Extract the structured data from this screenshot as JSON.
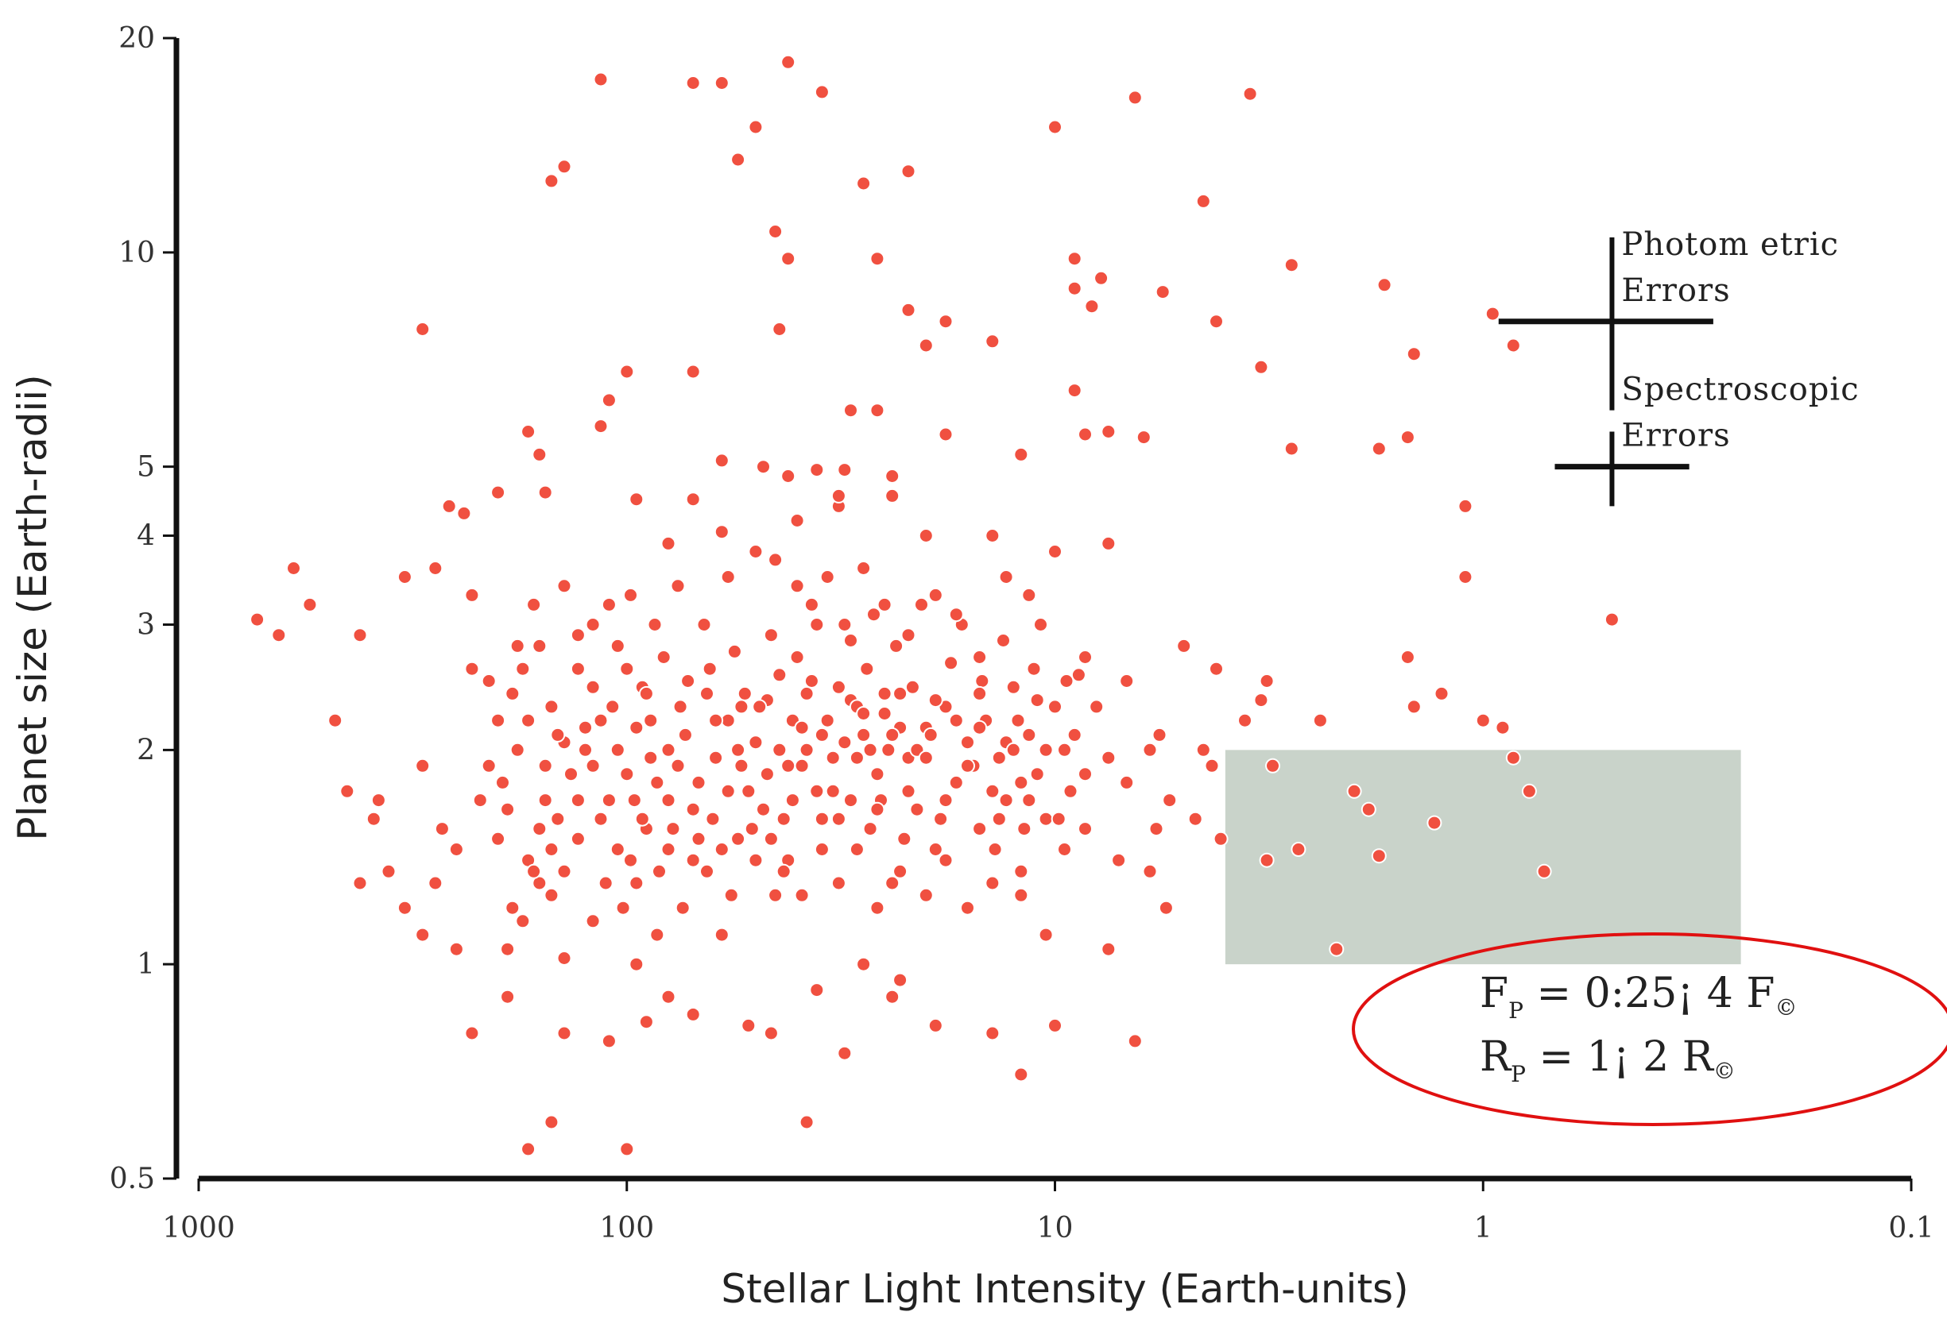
{
  "chart_data": {
    "type": "scatter",
    "xlabel": "Stellar Light Intensity (Earth-units)",
    "ylabel": "Planet size (Earth-radii)",
    "x_scale": "log",
    "y_scale": "log",
    "x_reversed": true,
    "xlim": [
      1000,
      0.1
    ],
    "ylim": [
      0.5,
      20
    ],
    "x_ticks": [
      1000,
      100,
      10,
      1,
      0.1
    ],
    "x_tick_labels": [
      "1000",
      "100",
      "10",
      "1",
      "0.1"
    ],
    "y_ticks": [
      0.5,
      1,
      2,
      3,
      4,
      5,
      10,
      20
    ],
    "y_tick_labels": [
      "0.5",
      "1",
      "2",
      "3",
      "4",
      "5",
      "10",
      "20"
    ],
    "grid": false,
    "point_color": "#f05040",
    "highlight_region": {
      "x": [
        4,
        0.25
      ],
      "y": [
        1,
        2
      ],
      "color": "#c9d3ca"
    },
    "error_bars": [
      {
        "label_lines": [
          "Photom etric",
          "Errors"
        ],
        "center": [
          0.5,
          8.0
        ],
        "x_range": [
          0.92,
          0.29
        ],
        "y_range": [
          6.0,
          10.5
        ]
      },
      {
        "label_lines": [
          "Spectroscopic",
          "Errors"
        ],
        "center": [
          0.5,
          5.0
        ],
        "x_range": [
          0.68,
          0.33
        ],
        "y_range": [
          4.4,
          5.6
        ]
      }
    ],
    "formula_lines": [
      {
        "main": "F",
        "sub": "P",
        "rest": " = 0:25¡ 4 F",
        "end": "©"
      },
      {
        "main": "R",
        "sub": "P",
        "rest": " = 1¡ 2 R",
        "end": "©"
      }
    ],
    "highlight_points": [
      [
        3.1,
        1.9
      ],
      [
        2.0,
        1.75
      ],
      [
        1.85,
        1.65
      ],
      [
        2.7,
        1.45
      ],
      [
        3.2,
        1.4
      ],
      [
        1.75,
        1.42
      ],
      [
        1.3,
        1.58
      ],
      [
        0.78,
        1.75
      ],
      [
        0.72,
        1.35
      ],
      [
        2.2,
        1.05
      ]
    ],
    "points": [
      [
        42,
        18.5
      ],
      [
        70,
        17.3
      ],
      [
        115,
        17.5
      ],
      [
        60,
        17.3
      ],
      [
        35,
        16.8
      ],
      [
        6.5,
        16.5
      ],
      [
        3.5,
        16.7
      ],
      [
        50,
        15
      ],
      [
        10,
        15
      ],
      [
        140,
        13.2
      ],
      [
        150,
        12.6
      ],
      [
        55,
        13.5
      ],
      [
        22,
        13
      ],
      [
        28,
        12.5
      ],
      [
        4.5,
        11.8
      ],
      [
        45,
        10.7
      ],
      [
        42,
        9.8
      ],
      [
        26,
        9.8
      ],
      [
        9,
        9.8
      ],
      [
        2.8,
        9.6
      ],
      [
        7.8,
        9.2
      ],
      [
        1.7,
        9.0
      ],
      [
        9,
        8.9
      ],
      [
        5.6,
        8.8
      ],
      [
        8.2,
        8.4
      ],
      [
        0.95,
        8.2
      ],
      [
        22,
        8.3
      ],
      [
        18,
        8.0
      ],
      [
        4.2,
        8.0
      ],
      [
        44,
        7.8
      ],
      [
        300,
        7.8
      ],
      [
        14,
        7.5
      ],
      [
        20,
        7.4
      ],
      [
        0.85,
        7.4
      ],
      [
        1.45,
        7.2
      ],
      [
        3.3,
        6.9
      ],
      [
        70,
        6.8
      ],
      [
        100,
        6.8
      ],
      [
        110,
        6.2
      ],
      [
        9,
        6.4
      ],
      [
        26,
        6.0
      ],
      [
        30,
        6.0
      ],
      [
        115,
        5.7
      ],
      [
        170,
        5.6
      ],
      [
        7.5,
        5.6
      ],
      [
        8.5,
        5.55
      ],
      [
        18,
        5.55
      ],
      [
        6.2,
        5.5
      ],
      [
        1.5,
        5.5
      ],
      [
        1.75,
        5.3
      ],
      [
        2.8,
        5.3
      ],
      [
        12,
        5.2
      ],
      [
        60,
        5.1
      ],
      [
        160,
        5.2
      ],
      [
        48,
        5.0
      ],
      [
        36,
        4.95
      ],
      [
        42,
        4.85
      ],
      [
        24,
        4.85
      ],
      [
        31,
        4.95
      ],
      [
        32,
        4.4
      ],
      [
        32,
        4.55
      ],
      [
        24,
        4.55
      ],
      [
        200,
        4.6
      ],
      [
        155,
        4.6
      ],
      [
        260,
        4.4
      ],
      [
        240,
        4.3
      ],
      [
        95,
        4.5
      ],
      [
        70,
        4.5
      ],
      [
        1.1,
        4.4
      ],
      [
        40,
        4.2
      ],
      [
        20,
        4.0
      ],
      [
        14,
        4.0
      ],
      [
        60,
        4.05
      ],
      [
        80,
        3.9
      ],
      [
        10,
        3.8
      ],
      [
        7.5,
        3.9
      ],
      [
        600,
        3.6
      ],
      [
        230,
        3.3
      ],
      [
        330,
        3.5
      ],
      [
        280,
        3.6
      ],
      [
        1.1,
        3.5
      ],
      [
        0.5,
        3.05
      ],
      [
        730,
        3.05
      ],
      [
        550,
        3.2
      ],
      [
        420,
        2.9
      ],
      [
        650,
        2.9
      ],
      [
        230,
        2.6
      ],
      [
        130,
        2.6
      ],
      [
        180,
        2.8
      ],
      [
        8.5,
        2.7
      ],
      [
        5,
        2.8
      ],
      [
        6.8,
        2.5
      ],
      [
        4.2,
        2.6
      ],
      [
        3.2,
        2.5
      ],
      [
        1.5,
        2.7
      ],
      [
        1.45,
        2.3
      ],
      [
        1.25,
        2.4
      ],
      [
        0.9,
        2.15
      ],
      [
        1.0,
        2.2
      ],
      [
        0.85,
        1.95
      ],
      [
        3.6,
        2.2
      ],
      [
        3.3,
        2.35
      ],
      [
        2.4,
        2.2
      ],
      [
        4.5,
        2.0
      ],
      [
        5.7,
        2.1
      ],
      [
        6,
        2.0
      ],
      [
        7.5,
        1.95
      ],
      [
        8,
        2.3
      ],
      [
        9,
        2.1
      ],
      [
        6.8,
        1.8
      ],
      [
        5.4,
        1.7
      ],
      [
        5.8,
        1.55
      ],
      [
        4.7,
        1.6
      ],
      [
        4.3,
        1.9
      ],
      [
        8.5,
        1.55
      ],
      [
        7.1,
        1.4
      ],
      [
        6,
        1.35
      ],
      [
        4.1,
        1.5
      ],
      [
        5.5,
        1.2
      ],
      [
        7.5,
        1.05
      ],
      [
        10,
        0.82
      ],
      [
        12,
        0.7
      ],
      [
        14,
        0.8
      ],
      [
        6.5,
        0.78
      ],
      [
        19,
        0.82
      ],
      [
        24,
        0.9
      ],
      [
        31,
        0.75
      ],
      [
        36,
        0.92
      ],
      [
        38,
        0.6
      ],
      [
        46,
        0.8
      ],
      [
        52,
        0.82
      ],
      [
        70,
        0.85
      ],
      [
        80,
        0.9
      ],
      [
        90,
        0.83
      ],
      [
        100,
        0.55
      ],
      [
        110,
        0.78
      ],
      [
        140,
        0.8
      ],
      [
        150,
        0.6
      ],
      [
        170,
        0.55
      ],
      [
        230,
        0.8
      ],
      [
        190,
        0.9
      ],
      [
        250,
        1.05
      ],
      [
        190,
        1.05
      ],
      [
        140,
        1.02
      ],
      [
        95,
        1.0
      ],
      [
        85,
        1.1
      ],
      [
        60,
        1.1
      ],
      [
        28,
        1.0
      ],
      [
        23,
        0.95
      ],
      [
        380,
        1.7
      ],
      [
        450,
        1.75
      ],
      [
        480,
        2.2
      ],
      [
        390,
        1.6
      ],
      [
        420,
        1.3
      ],
      [
        360,
        1.35
      ],
      [
        280,
        1.3
      ],
      [
        300,
        1.1
      ],
      [
        330,
        1.2
      ],
      [
        250,
        1.45
      ],
      [
        270,
        1.55
      ],
      [
        300,
        1.9
      ],
      [
        220,
        1.7
      ],
      [
        210,
        1.9
      ],
      [
        190,
        1.65
      ],
      [
        170,
        1.4
      ],
      [
        160,
        1.3
      ],
      [
        150,
        1.25
      ],
      [
        145,
        1.6
      ],
      [
        135,
        1.85
      ],
      [
        125,
        2.0
      ],
      [
        115,
        2.2
      ],
      [
        110,
        1.7
      ],
      [
        105,
        1.45
      ],
      [
        95,
        1.3
      ],
      [
        90,
        1.55
      ],
      [
        85,
        1.8
      ],
      [
        80,
        2.0
      ],
      [
        75,
        2.3
      ],
      [
        70,
        1.65
      ],
      [
        65,
        1.35
      ],
      [
        62,
        1.95
      ],
      [
        58,
        2.2
      ],
      [
        55,
        1.5
      ],
      [
        52,
        1.75
      ],
      [
        50,
        2.05
      ],
      [
        47,
        2.35
      ],
      [
        45,
        1.25
      ],
      [
        43,
        1.6
      ],
      [
        41,
        2.2
      ],
      [
        39,
        1.9
      ],
      [
        37,
        2.5
      ],
      [
        35,
        1.45
      ],
      [
        33,
        1.75
      ],
      [
        31,
        2.05
      ],
      [
        30,
        2.35
      ],
      [
        28,
        2.1
      ],
      [
        27,
        1.55
      ],
      [
        26,
        1.85
      ],
      [
        25,
        2.25
      ],
      [
        24,
        1.3
      ],
      [
        23,
        2.4
      ],
      [
        22,
        1.95
      ],
      [
        21,
        1.65
      ],
      [
        20,
        2.15
      ],
      [
        19,
        1.45
      ],
      [
        18,
        2.3
      ],
      [
        17,
        1.8
      ],
      [
        16,
        2.05
      ],
      [
        15,
        1.55
      ],
      [
        14.5,
        2.2
      ],
      [
        13.5,
        1.95
      ],
      [
        13,
        1.7
      ],
      [
        12.5,
        2.45
      ],
      [
        12,
        1.35
      ],
      [
        11.5,
        2.1
      ],
      [
        11,
        1.85
      ],
      [
        10.5,
        1.6
      ],
      [
        10,
        2.3
      ],
      [
        9.5,
        2.0
      ],
      [
        9.2,
        1.75
      ],
      [
        8.8,
        2.55
      ],
      [
        150,
        2.3
      ],
      [
        140,
        2.05
      ],
      [
        130,
        1.5
      ],
      [
        120,
        2.45
      ],
      [
        100,
        2.6
      ],
      [
        95,
        2.15
      ],
      [
        88,
        1.95
      ],
      [
        82,
        2.7
      ],
      [
        78,
        1.55
      ],
      [
        72,
        2.5
      ],
      [
        68,
        1.8
      ],
      [
        64,
        2.6
      ],
      [
        60,
        1.45
      ],
      [
        56,
        2.75
      ],
      [
        53,
        2.4
      ],
      [
        48,
        1.65
      ],
      [
        46,
        2.9
      ],
      [
        44,
        2.55
      ],
      [
        42,
        1.4
      ],
      [
        40,
        2.7
      ],
      [
        38,
        2.0
      ],
      [
        36,
        3.0
      ],
      [
        34,
        2.2
      ],
      [
        32,
        1.6
      ],
      [
        30,
        2.85
      ],
      [
        29,
        1.95
      ],
      [
        27.5,
        2.6
      ],
      [
        26.5,
        3.1
      ],
      [
        25.5,
        1.7
      ],
      [
        24.5,
        2.0
      ],
      [
        23.5,
        2.8
      ],
      [
        22.5,
        1.5
      ],
      [
        21.5,
        2.45
      ],
      [
        20.5,
        3.2
      ],
      [
        19.5,
        2.1
      ],
      [
        18.5,
        1.6
      ],
      [
        17.5,
        2.65
      ],
      [
        16.5,
        3.0
      ],
      [
        15.5,
        1.9
      ],
      [
        14.8,
        2.5
      ],
      [
        13.8,
        1.45
      ],
      [
        13.2,
        2.85
      ],
      [
        12.2,
        2.2
      ],
      [
        11.8,
        1.55
      ],
      [
        11.2,
        2.6
      ],
      [
        10.8,
        3.0
      ],
      [
        9.8,
        1.6
      ],
      [
        9.4,
        2.5
      ],
      [
        210,
        2.5
      ],
      [
        200,
        2.2
      ],
      [
        180,
        2.0
      ],
      [
        175,
        2.6
      ],
      [
        165,
        3.2
      ],
      [
        160,
        2.8
      ],
      [
        155,
        1.9
      ],
      [
        140,
        3.4
      ],
      [
        130,
        2.9
      ],
      [
        120,
        3.0
      ],
      [
        110,
        3.2
      ],
      [
        105,
        2.8
      ],
      [
        98,
        3.3
      ],
      [
        92,
        2.45
      ],
      [
        86,
        3.0
      ],
      [
        76,
        3.4
      ],
      [
        66,
        3.0
      ],
      [
        58,
        3.5
      ],
      [
        54,
        2.3
      ],
      [
        50,
        3.8
      ],
      [
        45,
        3.7
      ],
      [
        40,
        3.4
      ],
      [
        37,
        3.2
      ],
      [
        34,
        3.5
      ],
      [
        31,
        3.0
      ],
      [
        28,
        3.6
      ],
      [
        25,
        3.2
      ],
      [
        22,
        2.9
      ],
      [
        19,
        3.3
      ],
      [
        17,
        3.1
      ],
      [
        15,
        2.7
      ],
      [
        13,
        3.5
      ],
      [
        11.5,
        3.3
      ],
      [
        200,
        1.5
      ],
      [
        185,
        1.2
      ],
      [
        175,
        1.15
      ],
      [
        165,
        1.35
      ],
      [
        155,
        1.7
      ],
      [
        145,
        2.1
      ],
      [
        120,
        1.15
      ],
      [
        112,
        1.3
      ],
      [
        102,
        1.2
      ],
      [
        96,
        1.7
      ],
      [
        90,
        2.4
      ],
      [
        84,
        1.35
      ],
      [
        74,
        1.2
      ],
      [
        68,
        1.5
      ],
      [
        62,
        2.2
      ],
      [
        57,
        1.25
      ],
      [
        51,
        1.55
      ],
      [
        47,
        1.85
      ],
      [
        43,
        1.35
      ],
      [
        39,
        1.25
      ],
      [
        35,
        1.6
      ],
      [
        32,
        1.3
      ],
      [
        29,
        1.45
      ],
      [
        26,
        1.2
      ],
      [
        23,
        1.35
      ],
      [
        20,
        1.25
      ],
      [
        18,
        1.4
      ],
      [
        16,
        1.2
      ],
      [
        14,
        1.3
      ],
      [
        12,
        1.25
      ],
      [
        10.5,
        1.1
      ],
      [
        9.5,
        1.45
      ],
      [
        8.5,
        1.85
      ],
      [
        120,
        1.9
      ],
      [
        108,
        2.3
      ],
      [
        100,
        1.85
      ],
      [
        92,
        1.6
      ],
      [
        80,
        1.45
      ],
      [
        73,
        2.1
      ],
      [
        65,
        2.4
      ],
      [
        54,
        1.9
      ],
      [
        49,
        2.3
      ],
      [
        44,
        2.0
      ],
      [
        41,
        1.7
      ],
      [
        38,
        2.4
      ],
      [
        35,
        2.1
      ],
      [
        32,
        2.45
      ],
      [
        29,
        2.3
      ],
      [
        27,
        2.0
      ],
      [
        25,
        2.4
      ],
      [
        23,
        2.15
      ],
      [
        21,
        2.0
      ],
      [
        19,
        2.35
      ],
      [
        17,
        2.2
      ],
      [
        15,
        2.4
      ],
      [
        14,
        1.75
      ],
      [
        13,
        2.05
      ],
      [
        12,
        1.8
      ],
      [
        11,
        2.35
      ],
      [
        195,
        1.8
      ],
      [
        185,
        2.4
      ],
      [
        170,
        2.2
      ],
      [
        160,
        1.55
      ],
      [
        150,
        1.45
      ],
      [
        140,
        1.35
      ],
      [
        130,
        1.7
      ],
      [
        125,
        2.15
      ],
      [
        115,
        1.6
      ],
      [
        105,
        2.0
      ],
      [
        98,
        1.4
      ],
      [
        88,
        2.2
      ],
      [
        80,
        1.7
      ],
      [
        76,
        1.9
      ],
      [
        70,
        1.4
      ],
      [
        63,
        1.6
      ],
      [
        58,
        1.75
      ],
      [
        55,
        2.0
      ],
      [
        50,
        1.4
      ],
      [
        46,
        1.5
      ],
      [
        42,
        1.9
      ],
      [
        39,
        2.15
      ],
      [
        36,
        1.75
      ],
      [
        33,
        1.95
      ],
      [
        30,
        1.7
      ],
      [
        28,
        2.25
      ],
      [
        26,
        1.65
      ],
      [
        24,
        2.1
      ],
      [
        22,
        1.75
      ],
      [
        20,
        1.95
      ],
      [
        18,
        1.7
      ],
      [
        16,
        1.9
      ],
      [
        15,
        2.15
      ],
      [
        13.5,
        1.6
      ],
      [
        12.5,
        2.0
      ],
      [
        11.5,
        1.7
      ],
      [
        10.5,
        2.0
      ]
    ]
  }
}
